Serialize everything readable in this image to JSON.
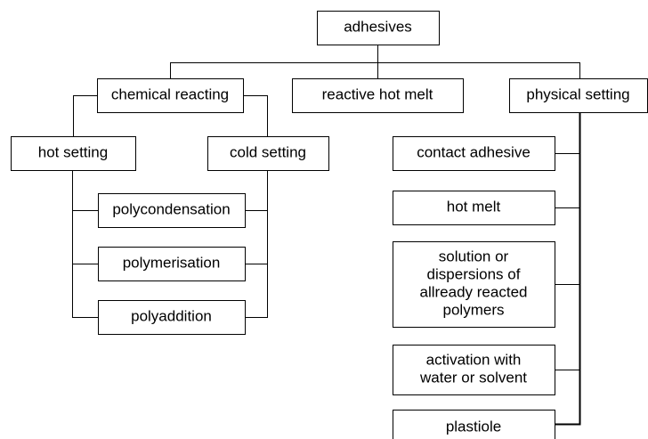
{
  "nodes": [
    {
      "lines": [
        "adhesives"
      ]
    },
    {
      "lines": [
        "chemical reacting"
      ]
    },
    {
      "lines": [
        "reactive hot melt"
      ]
    },
    {
      "lines": [
        "physical setting"
      ]
    },
    {
      "lines": [
        "hot setting"
      ]
    },
    {
      "lines": [
        "cold setting"
      ]
    },
    {
      "lines": [
        "polycondensation"
      ]
    },
    {
      "lines": [
        "polymerisation"
      ]
    },
    {
      "lines": [
        "polyaddition"
      ]
    },
    {
      "lines": [
        "contact adhesive"
      ]
    },
    {
      "lines": [
        "hot melt"
      ]
    },
    {
      "lines": [
        "solution or",
        "dispersions of",
        "allready reacted",
        "polymers"
      ]
    },
    {
      "lines": [
        "activation with",
        "water or solvent"
      ]
    },
    {
      "lines": [
        "plastiole"
      ]
    }
  ]
}
